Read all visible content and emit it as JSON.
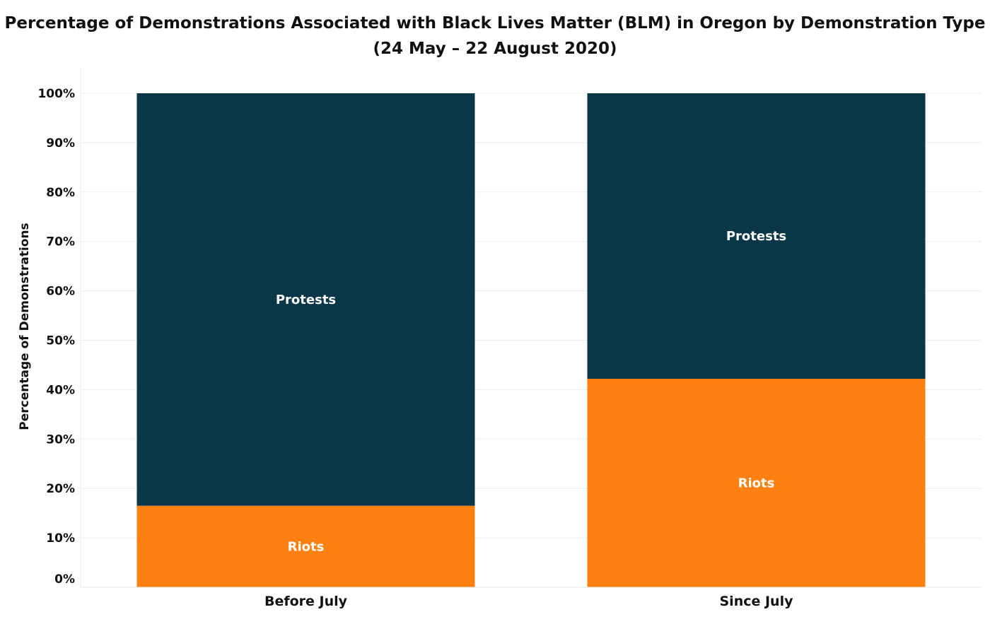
{
  "chart_data": {
    "type": "bar",
    "stacked": true,
    "title": "Percentage of Demonstrations Associated with Black Lives Matter (BLM) in Oregon by Demonstration Type",
    "subtitle": "(24 May – 22 August 2020)",
    "xlabel": "",
    "ylabel": "Percentage of Demonstrations",
    "ylim": [
      0,
      100
    ],
    "yticks": [
      "0%",
      "10%",
      "20%",
      "30%",
      "40%",
      "50%",
      "60%",
      "70%",
      "80%",
      "90%",
      "100%"
    ],
    "grid": true,
    "categories": [
      "Before July",
      "Since July"
    ],
    "series": [
      {
        "name": "Riots",
        "values": [
          16.5,
          42.2
        ],
        "color": "#fd8011"
      },
      {
        "name": "Protests",
        "values": [
          83.5,
          57.8
        ],
        "color": "#0a3747"
      }
    ]
  }
}
